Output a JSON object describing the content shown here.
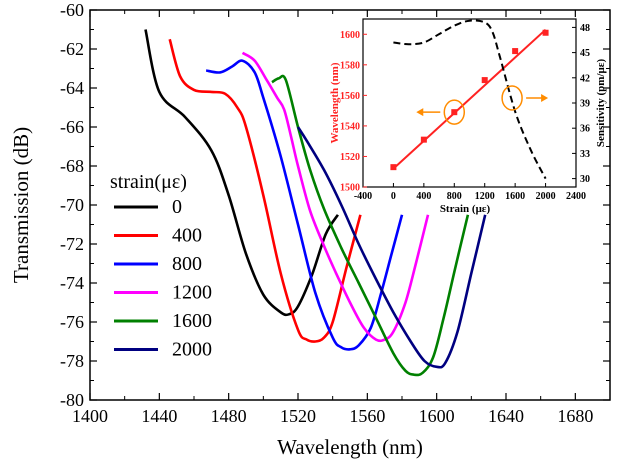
{
  "chart_data": [
    {
      "type": "line",
      "xlabel": "Wavelength (nm)",
      "ylabel": "Transmission (dB)",
      "xlim": [
        1400,
        1700
      ],
      "ylim": [
        -80,
        -60
      ],
      "xticks": [
        "1400",
        "1440",
        "1480",
        "1520",
        "1560",
        "1600",
        "1640",
        "1680"
      ],
      "yticks": [
        "-60",
        "-62",
        "-64",
        "-66",
        "-68",
        "-70",
        "-72",
        "-74",
        "-76",
        "-78",
        "-80"
      ],
      "legend_title": "strain(με)",
      "legend_placement": "left",
      "series": [
        {
          "name": "0",
          "color": "#000000",
          "x": [
            1432,
            1440,
            1455,
            1470,
            1480,
            1490,
            1500,
            1510,
            1515,
            1520,
            1528,
            1536,
            1543
          ],
          "y": [
            -61,
            -64.2,
            -65.5,
            -67.2,
            -69.5,
            -72.5,
            -74.6,
            -75.5,
            -75.6,
            -75.2,
            -73.6,
            -71.5,
            -70.5
          ]
        },
        {
          "name": "400",
          "color": "#ff0000",
          "x": [
            1446,
            1452,
            1460,
            1470,
            1478,
            1485,
            1490,
            1500,
            1510,
            1520,
            1525,
            1530,
            1535,
            1540,
            1548,
            1556
          ],
          "y": [
            -61.5,
            -63.4,
            -64.1,
            -64.2,
            -64.3,
            -65,
            -66,
            -69.5,
            -73.5,
            -76.4,
            -76.9,
            -77,
            -76.8,
            -76,
            -73.2,
            -70.5
          ]
        },
        {
          "name": "800",
          "color": "#0000ff",
          "x": [
            1467,
            1475,
            1482,
            1488,
            1495,
            1500,
            1510,
            1520,
            1530,
            1540,
            1545,
            1550,
            1555,
            1562,
            1568,
            1574,
            1580
          ],
          "y": [
            -63.1,
            -63.2,
            -62.9,
            -62.6,
            -63.2,
            -64.5,
            -67.5,
            -71,
            -74.5,
            -76.8,
            -77.3,
            -77.4,
            -77.2,
            -76.3,
            -74.5,
            -72.5,
            -70.5
          ]
        },
        {
          "name": "1200",
          "color": "#ff00ff",
          "x": [
            1488,
            1495,
            1502,
            1508,
            1512,
            1516,
            1520,
            1527,
            1535,
            1542,
            1550,
            1558,
            1565,
            1570,
            1575,
            1582,
            1588,
            1595
          ],
          "y": [
            -62.2,
            -62.6,
            -63.6,
            -64.5,
            -65.1,
            -66.5,
            -68,
            -70.3,
            -72.1,
            -73.5,
            -75,
            -76.3,
            -76.9,
            -76.9,
            -76.5,
            -75,
            -73,
            -70.5
          ]
        },
        {
          "name": "1600",
          "color": "#008000",
          "x": [
            1505,
            1509,
            1513,
            1520,
            1527,
            1535,
            1545,
            1555,
            1565,
            1575,
            1582,
            1587,
            1592,
            1598,
            1604,
            1610,
            1618
          ],
          "y": [
            -63.7,
            -63.5,
            -63.6,
            -66,
            -68.2,
            -70.2,
            -72.2,
            -74,
            -75.8,
            -77.6,
            -78.5,
            -78.7,
            -78.6,
            -77.8,
            -75.8,
            -73.5,
            -70.5
          ]
        },
        {
          "name": "2000",
          "color": "#000080",
          "x": [
            1520,
            1525,
            1535,
            1545,
            1555,
            1565,
            1575,
            1585,
            1593,
            1600,
            1605,
            1612,
            1620,
            1628
          ],
          "y": [
            -66,
            -66.7,
            -68.2,
            -70,
            -72,
            -73.8,
            -75.5,
            -77,
            -78,
            -78.3,
            -78.1,
            -76.5,
            -73.5,
            -70.5
          ]
        }
      ]
    },
    {
      "type": "line",
      "inset": true,
      "xlabel": "Strain (με)",
      "ylabel_left": "Wavelength (nm)",
      "ylabel_right": "Sensitivity (pm/με)",
      "xlim": [
        -400,
        2400
      ],
      "ylim_left": [
        1500,
        1610
      ],
      "ylim_right": [
        29,
        49
      ],
      "xticks": [
        "-400",
        "0",
        "400",
        "800",
        "1200",
        "1600",
        "2000",
        "2400"
      ],
      "yticks_left": [
        "1500",
        "1520",
        "1540",
        "1560",
        "1580",
        "1600"
      ],
      "yticks_right": [
        "30",
        "33",
        "36",
        "39",
        "42",
        "45",
        "48"
      ],
      "series": [
        {
          "name": "Wavelength",
          "axis": "left",
          "color": "#ff2222",
          "style": "points",
          "x": [
            0,
            400,
            800,
            1200,
            1600,
            2000
          ],
          "y": [
            1513,
            1531,
            1549,
            1570,
            1589,
            1601
          ]
        },
        {
          "name": "Wavelength fit",
          "axis": "left",
          "color": "#ff2222",
          "style": "line",
          "x": [
            0,
            2000
          ],
          "y": [
            1512,
            1603
          ]
        },
        {
          "name": "Sensitivity",
          "axis": "right",
          "color": "#000000",
          "style": "dashed",
          "x": [
            0,
            200,
            400,
            600,
            800,
            1000,
            1200,
            1300,
            1400,
            1600,
            1800,
            2000
          ],
          "y": [
            46.2,
            46.0,
            46.2,
            47.2,
            48.2,
            48.8,
            48.6,
            47.5,
            44.5,
            38,
            33.5,
            30
          ]
        }
      ]
    }
  ]
}
